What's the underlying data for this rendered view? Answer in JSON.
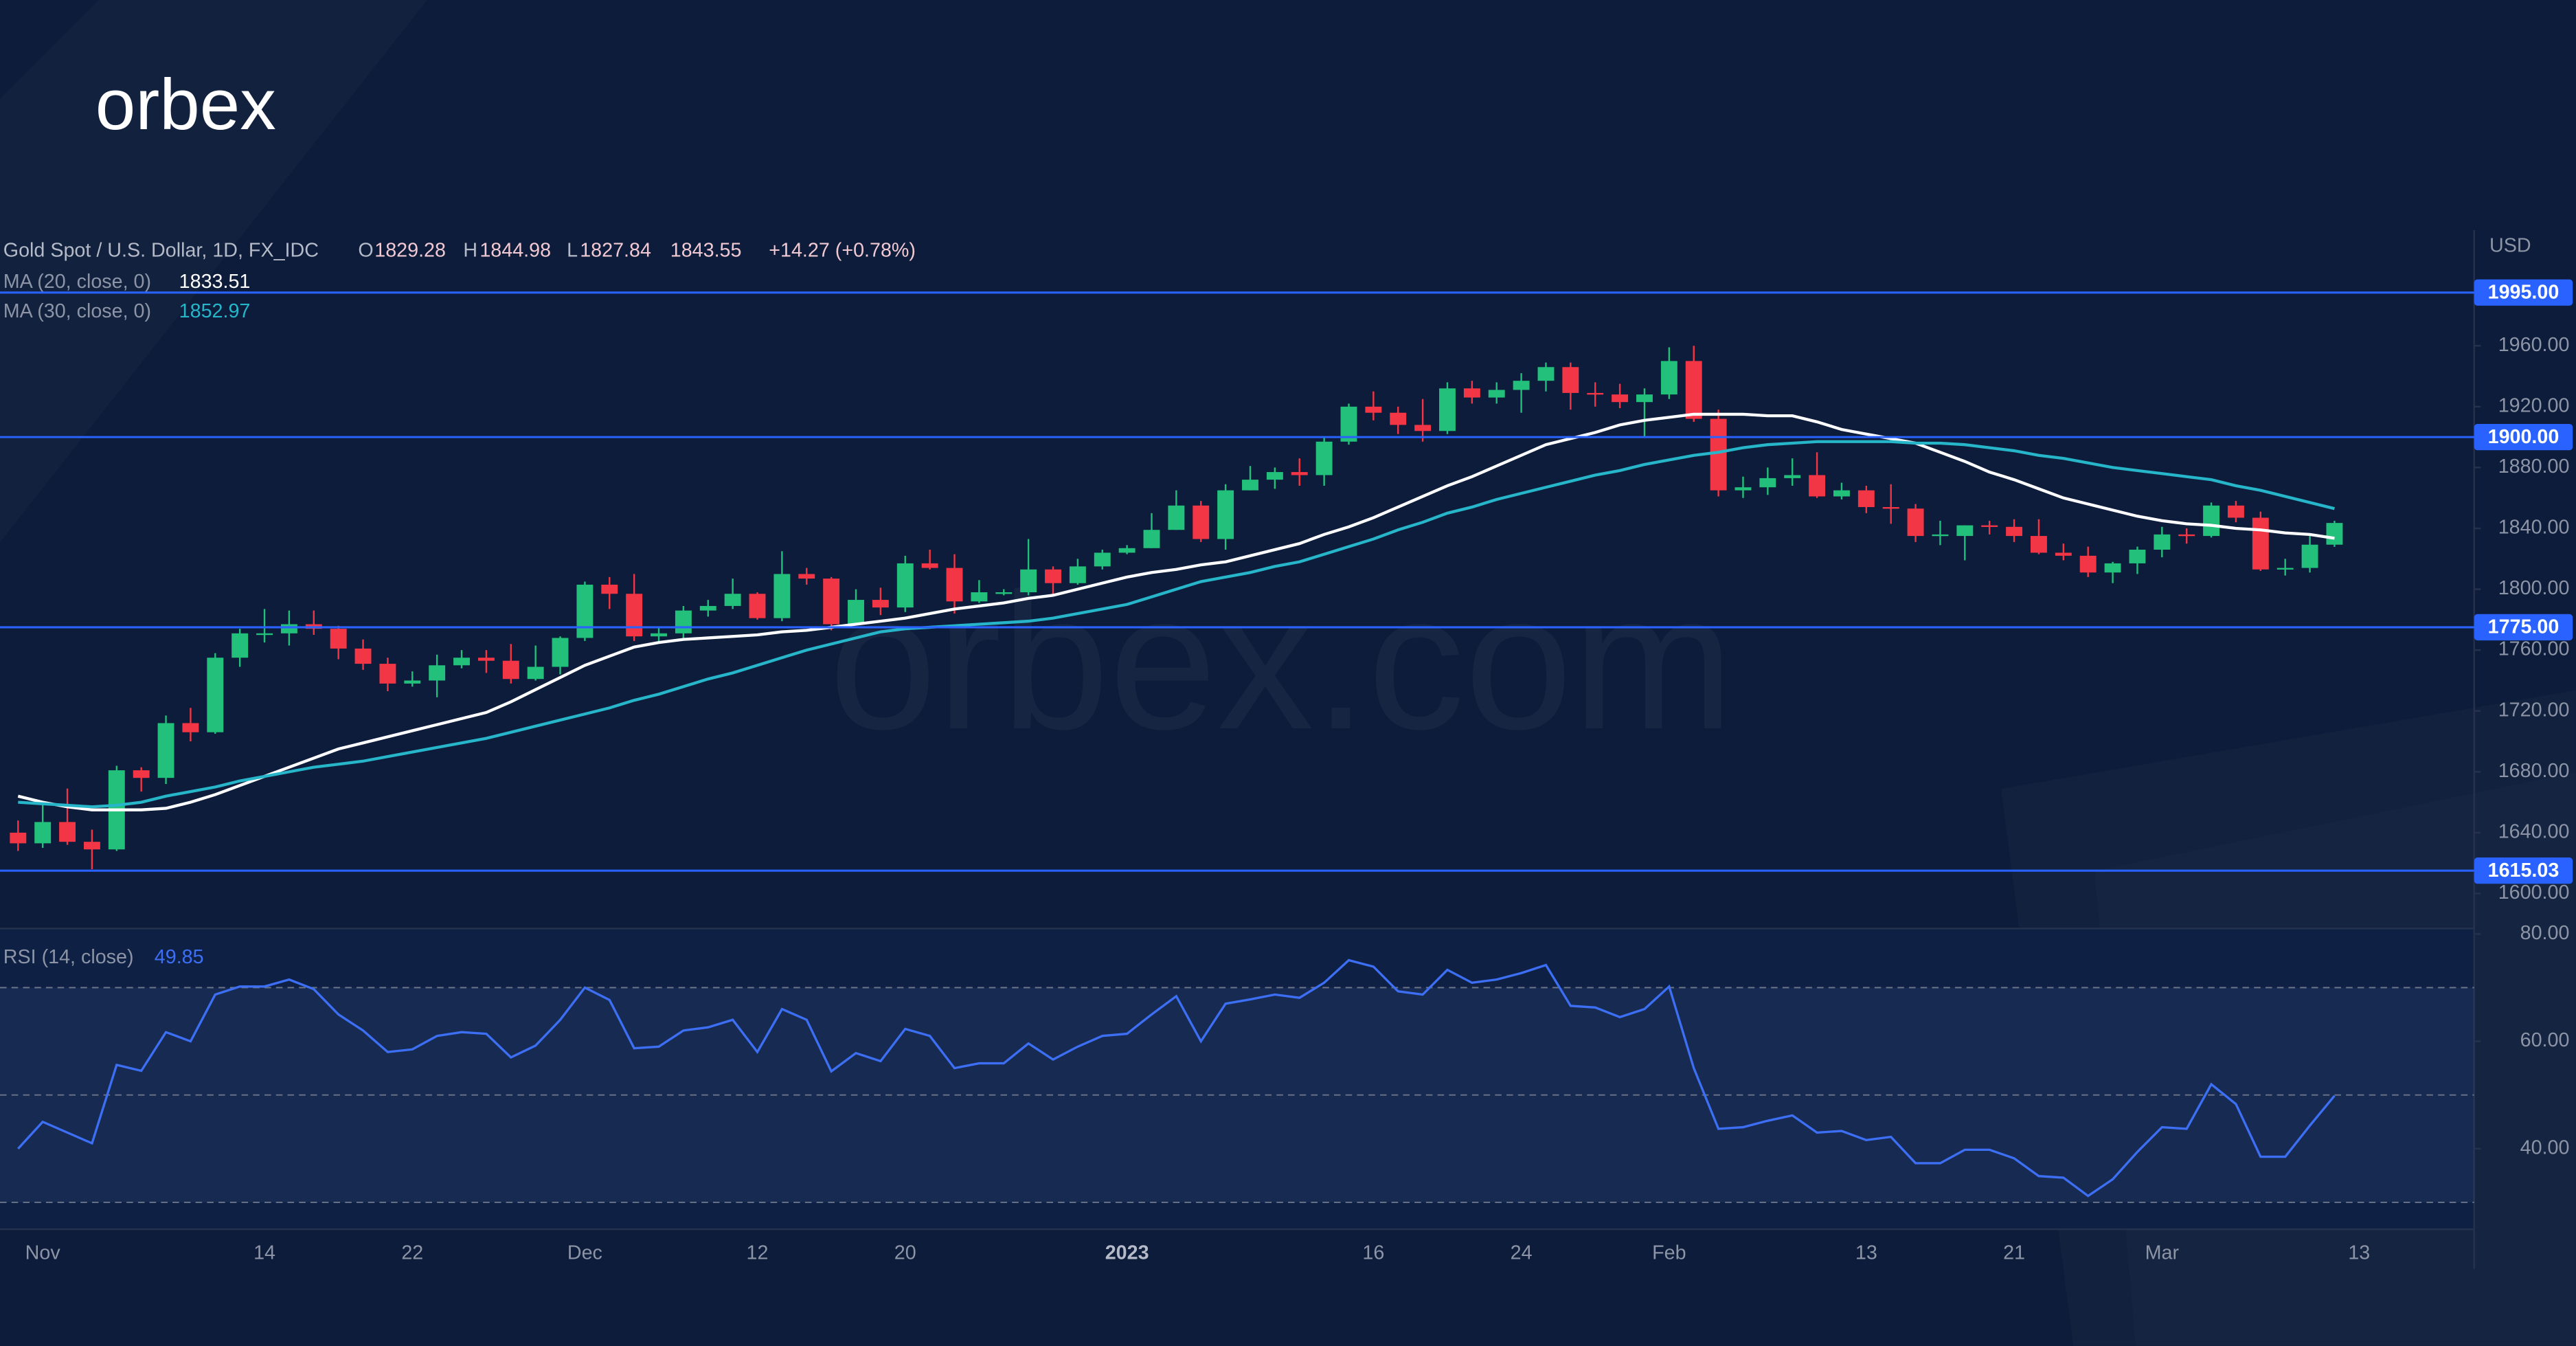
{
  "brand": "orbex",
  "watermark": "orbex.com",
  "chart_data": [
    {
      "type": "candlestick",
      "title": "Gold Spot / U.S. Dollar, 1D, FX_IDC",
      "ohlc_labels": [
        "O",
        "H",
        "L"
      ],
      "change": "+14.27 (+0.78%)",
      "currency": "USD",
      "categories": [
        null,
        "Nov",
        null,
        null,
        null,
        null,
        null,
        null,
        null,
        null,
        "14",
        null,
        null,
        null,
        null,
        null,
        "22",
        null,
        null,
        null,
        null,
        null,
        null,
        "Dec",
        null,
        null,
        null,
        null,
        null,
        null,
        "12",
        null,
        null,
        null,
        null,
        null,
        "20",
        null,
        null,
        null,
        null,
        null,
        null,
        null,
        null,
        "2023",
        null,
        null,
        null,
        null,
        null,
        null,
        null,
        null,
        null,
        "16",
        null,
        null,
        null,
        null,
        null,
        "24",
        null,
        null,
        null,
        null,
        null,
        "Feb",
        null,
        null,
        null,
        null,
        null,
        null,
        null,
        "13",
        null,
        null,
        null,
        null,
        null,
        "21",
        null,
        null,
        null,
        null,
        null,
        "Mar",
        null,
        null,
        null,
        null,
        null,
        null,
        null,
        "13"
      ],
      "open": [
        1640,
        1633,
        1647,
        1634,
        1629,
        1681,
        1676,
        1712,
        1706,
        1755,
        1771,
        1771,
        1777,
        1774,
        1761,
        1751,
        1738,
        1740,
        1750,
        1755,
        1753,
        1741,
        1749,
        1768,
        1803,
        1797,
        1769,
        1771,
        1786,
        1789,
        1797,
        1781,
        1810,
        1807,
        1777,
        1793,
        1788,
        1817,
        1814,
        1792,
        1798,
        1798,
        1813,
        1804,
        1815,
        1824,
        1827,
        1839,
        1855,
        1833,
        1865,
        1872,
        1877,
        1875,
        1897,
        1920,
        1916,
        1908,
        1904,
        1932,
        1926,
        1931,
        1937,
        1946,
        1929,
        1928,
        1923,
        1928,
        1950,
        1912,
        1865,
        1867,
        1873,
        1875,
        1861,
        1865,
        1854,
        1853,
        1835,
        1835,
        1842,
        1841,
        1835,
        1824,
        1822,
        1811,
        1817,
        1826,
        1836,
        1835,
        1855,
        1847,
        1813,
        1814,
        1829.28,
        null
      ],
      "high": [
        1648,
        1660,
        1669,
        1642,
        1684,
        1683,
        1717,
        1722,
        1758,
        1774,
        1787,
        1786,
        1786,
        1776,
        1767,
        1755,
        1746,
        1757,
        1760,
        1760,
        1764,
        1763,
        1769,
        1805,
        1808,
        1810,
        1775,
        1789,
        1793,
        1807,
        1798,
        1825,
        1814,
        1808,
        1800,
        1801,
        1822,
        1826,
        1823,
        1806,
        1800,
        1833,
        1815,
        1820,
        1826,
        1829,
        1850,
        1865,
        1858,
        1869,
        1881,
        1880,
        1886,
        1900,
        1922,
        1930,
        1920,
        1925,
        1936,
        1937,
        1936,
        1942,
        1949,
        1949,
        1936,
        1935,
        1932,
        1959,
        1960,
        1918,
        1874,
        1880,
        1886,
        1890,
        1870,
        1868,
        1869,
        1856,
        1845,
        1842,
        1845,
        1846,
        1846,
        1830,
        1828,
        1818,
        1828,
        1841,
        1840,
        1857,
        1858,
        1851,
        1820,
        1836,
        1844.98,
        null
      ],
      "low": [
        1628,
        1630,
        1632,
        1616,
        1628,
        1667,
        1672,
        1700,
        1705,
        1749,
        1765,
        1763,
        1770,
        1754,
        1747,
        1733,
        1736,
        1729,
        1748,
        1745,
        1738,
        1740,
        1744,
        1766,
        1787,
        1766,
        1765,
        1768,
        1782,
        1787,
        1780,
        1779,
        1803,
        1773,
        1777,
        1783,
        1785,
        1813,
        1784,
        1791,
        1796,
        1796,
        1796,
        1803,
        1813,
        1823,
        1827,
        1839,
        1831,
        1826,
        1865,
        1866,
        1868,
        1868,
        1895,
        1911,
        1902,
        1897,
        1902,
        1922,
        1922,
        1916,
        1930,
        1918,
        1920,
        1919,
        1900,
        1925,
        1910,
        1861,
        1860,
        1862,
        1868,
        1860,
        1859,
        1850,
        1843,
        1831,
        1829,
        1819,
        1836,
        1831,
        1823,
        1819,
        1808,
        1804,
        1810,
        1821,
        1830,
        1834,
        1844,
        1812,
        1809,
        1811,
        1827.84,
        null
      ],
      "close": [
        1633,
        1647,
        1634,
        1629,
        1681,
        1676,
        1712,
        1706,
        1755,
        1771,
        1771,
        1777,
        1774,
        1761,
        1751,
        1738,
        1740,
        1750,
        1755,
        1753,
        1741,
        1749,
        1768,
        1803,
        1797,
        1769,
        1771,
        1786,
        1789,
        1797,
        1781,
        1810,
        1807,
        1777,
        1793,
        1788,
        1817,
        1814,
        1792,
        1798,
        1798,
        1813,
        1804,
        1815,
        1824,
        1827,
        1839,
        1855,
        1833,
        1865,
        1872,
        1877,
        1875,
        1897,
        1920,
        1916,
        1908,
        1904,
        1932,
        1926,
        1931,
        1937,
        1946,
        1929,
        1928,
        1923,
        1928,
        1950,
        1912,
        1865,
        1867,
        1873,
        1875,
        1861,
        1865,
        1854,
        1853,
        1835,
        1836,
        1842,
        1841,
        1835,
        1824,
        1822,
        1811,
        1817,
        1826,
        1836,
        1835,
        1855,
        1847,
        1813,
        1814,
        1829.28,
        1843.55,
        null
      ],
      "up_color": "#22c07a",
      "down_color": "#f23645",
      "series": [
        {
          "name": "MA (20, close, 0)",
          "color": "#ffffff",
          "values": [
            1664,
            1660,
            1657,
            1655,
            1655,
            1655,
            1656,
            1660,
            1665,
            1671,
            1677,
            1683,
            1689,
            1695,
            1699,
            1703,
            1707,
            1711,
            1715,
            1719,
            1726,
            1734,
            1742,
            1750,
            1756,
            1762,
            1765,
            1767,
            1768,
            1769,
            1770,
            1772,
            1773,
            1775,
            1777,
            1779,
            1781,
            1784,
            1787,
            1789,
            1791,
            1794,
            1796,
            1800,
            1804,
            1808,
            1811,
            1813,
            1816,
            1818,
            1822,
            1826,
            1830,
            1836,
            1841,
            1847,
            1854,
            1861,
            1868,
            1874,
            1881,
            1888,
            1895,
            1899,
            1903,
            1908,
            1911,
            1913,
            1915,
            1915,
            1915,
            1914,
            1914,
            1910,
            1905,
            1902,
            1899,
            1896,
            1890,
            1884,
            1877,
            1872,
            1866,
            1860,
            1856,
            1852,
            1848,
            1845,
            1843,
            1842,
            1840,
            1839,
            1837,
            1836,
            1833.51,
            null
          ]
        },
        {
          "name": "MA (30, close, 0)",
          "color": "#26b5c9",
          "values": [
            1660,
            1659,
            1658,
            1657,
            1658,
            1660,
            1664,
            1667,
            1670,
            1674,
            1677,
            1680,
            1683,
            1685,
            1687,
            1690,
            1693,
            1696,
            1699,
            1702,
            1706,
            1710,
            1714,
            1718,
            1722,
            1727,
            1731,
            1736,
            1741,
            1745,
            1750,
            1755,
            1760,
            1764,
            1768,
            1772,
            1774,
            1775,
            1776,
            1777,
            1778,
            1779,
            1781,
            1784,
            1787,
            1790,
            1795,
            1800,
            1805,
            1808,
            1811,
            1815,
            1818,
            1823,
            1828,
            1833,
            1839,
            1844,
            1850,
            1854,
            1859,
            1863,
            1867,
            1871,
            1875,
            1878,
            1882,
            1885,
            1888,
            1890,
            1893,
            1895,
            1896,
            1897,
            1897,
            1897,
            1897,
            1896,
            1896,
            1895,
            1893,
            1891,
            1888,
            1886,
            1883,
            1880,
            1878,
            1876,
            1874,
            1872,
            1868,
            1865,
            1861,
            1857,
            1852.97,
            null
          ]
        }
      ],
      "levels": [
        {
          "value": 1995,
          "label": "1995.00"
        },
        {
          "value": 1900,
          "label": "1900.00"
        },
        {
          "value": 1775,
          "label": "1775.00"
        },
        1615.03
      ],
      "level_color": "#2962ff",
      "ylim": [
        1577,
        2036
      ],
      "yticks": [
        {
          "value": 1600,
          "label": "1600.00"
        },
        {
          "value": 1640,
          "label": "1640.00"
        },
        {
          "value": 1680,
          "label": "1680.00"
        },
        {
          "value": 1720,
          "label": "1720.00"
        },
        {
          "value": 1760,
          "label": "1760.00"
        },
        {
          "value": 1800,
          "label": "1800.00"
        },
        {
          "value": 1840,
          "label": "1840.00"
        },
        {
          "value": 1880,
          "label": "1880.00"
        },
        {
          "value": 1920,
          "label": "1920.00"
        },
        {
          "value": 1960,
          "label": "1960.00"
        }
      ],
      "grid": false
    },
    {
      "type": "line",
      "title": "RSI (14, close)",
      "color": "#3d6ff5",
      "values": [
        40,
        45,
        43,
        41,
        55.6,
        54.5,
        61.7,
        60,
        68.7,
        70.2,
        70.2,
        71.5,
        69.7,
        65,
        62,
        58,
        58.5,
        61,
        61.7,
        61.4,
        57,
        59.2,
        64,
        70,
        67.7,
        58.7,
        59,
        62,
        62.6,
        64,
        58,
        66,
        64,
        54.4,
        57.8,
        56.3,
        62.3,
        61,
        55,
        55.9,
        55.9,
        59.6,
        56.6,
        59,
        61,
        61.4,
        65,
        68.4,
        60,
        67,
        67.8,
        68.7,
        68.1,
        70.9,
        75.1,
        73.9,
        69.3,
        68.7,
        73.3,
        70.9,
        71.5,
        72.7,
        74.2,
        66.6,
        66.3,
        64.5,
        66,
        70.2,
        55,
        43.7,
        44,
        45.2,
        46.2,
        43,
        43.3,
        41.6,
        42.2,
        37.3,
        37.3,
        39.8,
        39.8,
        38.2,
        34.9,
        34.6,
        31.2,
        34.3,
        39.4,
        44,
        43.7,
        52,
        48.3,
        38.5,
        38.5,
        44.3,
        49.85,
        null
      ],
      "levels": [
        70,
        50,
        30
      ],
      "ylim": [
        25,
        81
      ],
      "yticks": [
        {
          "value": 40,
          "label": "40.00"
        },
        {
          "value": 60,
          "label": "60.00"
        },
        {
          "value": 80,
          "label": "80.00"
        }
      ],
      "grid": false
    }
  ]
}
